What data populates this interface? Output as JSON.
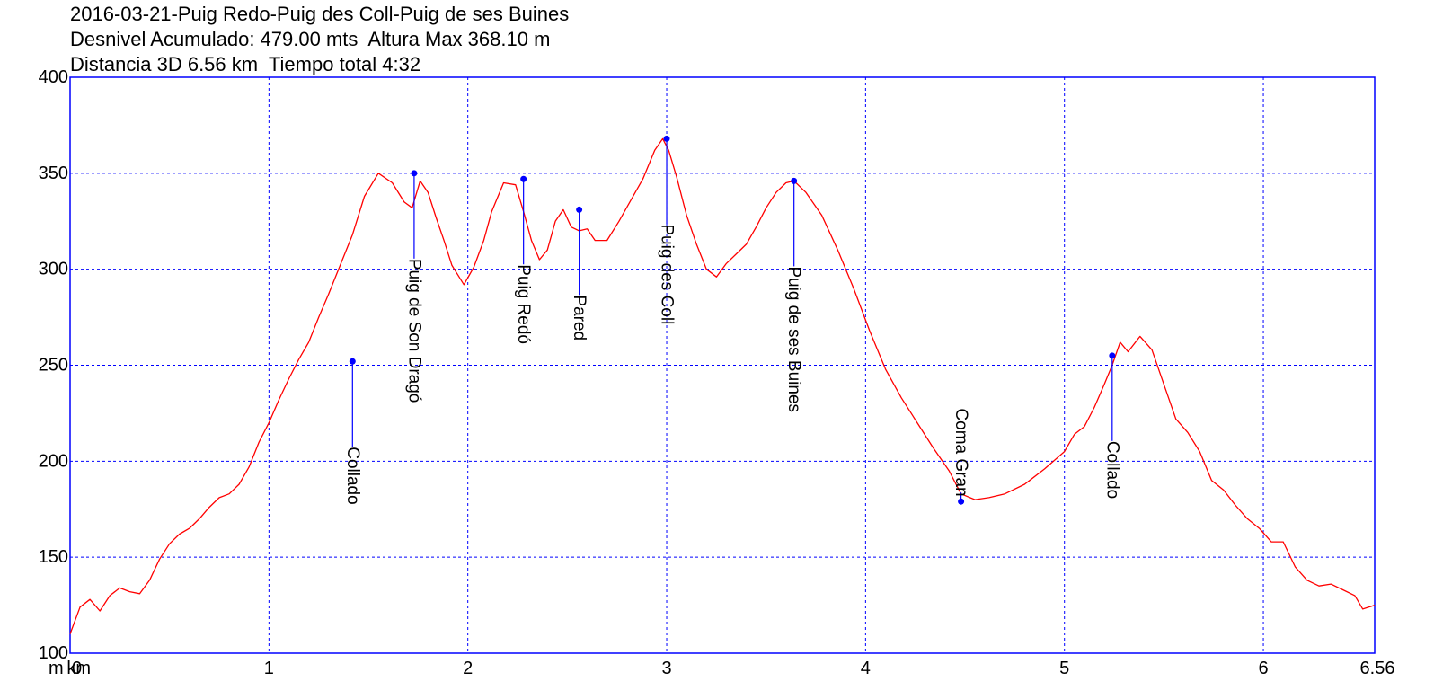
{
  "chart_data": {
    "type": "line",
    "title_lines": [
      "2016-03-21-Puig Redo-Puig des Coll-Puig de ses Buines",
      "Desnivel Acumulado: 479.00 mts  Altura Max 368.10 m",
      "Distancia 3D 6.56 km  Tiempo total 4:32"
    ],
    "xlabel": "km",
    "ylabel": "m",
    "xlim": [
      0,
      6.56
    ],
    "ylim": [
      100,
      400
    ],
    "x_ticks": [
      "0",
      "1",
      "2",
      "3",
      "4",
      "5",
      "6",
      "6.56"
    ],
    "x_tick_values": [
      0,
      1,
      2,
      3,
      4,
      5,
      6,
      6.56
    ],
    "y_ticks": [
      "100",
      "150",
      "200",
      "250",
      "300",
      "350",
      "400"
    ],
    "y_tick_values": [
      100,
      150,
      200,
      250,
      300,
      350,
      400
    ],
    "grid": true,
    "colors": {
      "profile": "#ff0000",
      "grid": "#0000ff",
      "frame": "#0000ff",
      "waypoint": "#0000ff"
    },
    "series": [
      {
        "x": [
          0,
          0.05,
          0.1,
          0.15,
          0.2,
          0.25,
          0.3,
          0.35,
          0.4,
          0.45,
          0.5,
          0.55,
          0.6,
          0.65,
          0.7,
          0.75,
          0.8,
          0.85,
          0.9,
          0.95,
          1.0,
          1.05,
          1.1,
          1.15,
          1.2,
          1.25,
          1.3,
          1.35,
          1.42,
          1.48,
          1.55,
          1.62,
          1.68,
          1.72,
          1.76,
          1.8,
          1.84,
          1.88,
          1.92,
          1.98,
          2.03,
          2.08,
          2.12,
          2.18,
          2.24,
          2.28,
          2.32,
          2.36,
          2.4,
          2.44,
          2.48,
          2.52,
          2.56,
          2.6,
          2.64,
          2.7,
          2.76,
          2.82,
          2.88,
          2.94,
          2.98,
          3.01,
          3.05,
          3.1,
          3.15,
          3.2,
          3.25,
          3.3,
          3.35,
          3.4,
          3.45,
          3.5,
          3.55,
          3.6,
          3.64,
          3.7,
          3.78,
          3.86,
          3.94,
          4.02,
          4.1,
          4.18,
          4.26,
          4.34,
          4.42,
          4.48,
          4.55,
          4.62,
          4.7,
          4.8,
          4.9,
          5.0,
          5.05,
          5.1,
          5.15,
          5.2,
          5.24,
          5.28,
          5.32,
          5.38,
          5.44,
          5.5,
          5.56,
          5.62,
          5.68,
          5.74,
          5.8,
          5.86,
          5.92,
          5.98,
          6.04,
          6.1,
          6.16,
          6.22,
          6.28,
          6.34,
          6.4,
          6.46,
          6.5,
          6.56
        ],
        "y": [
          110,
          124,
          128,
          122,
          130,
          134,
          132,
          131,
          138,
          149,
          157,
          162,
          165,
          170,
          176,
          181,
          183,
          188,
          197,
          210,
          220,
          232,
          243,
          253,
          262,
          275,
          287,
          300,
          318,
          338,
          350,
          345,
          335,
          332,
          346,
          340,
          327,
          315,
          302,
          292,
          301,
          315,
          330,
          345,
          344,
          330,
          315,
          305,
          310,
          325,
          331,
          322,
          320,
          321,
          315,
          315,
          325,
          336,
          347,
          362,
          368,
          362,
          348,
          328,
          313,
          300,
          296,
          303,
          308,
          313,
          322,
          332,
          340,
          345,
          346,
          340,
          328,
          310,
          290,
          268,
          248,
          233,
          220,
          207,
          195,
          183,
          180,
          181,
          183,
          188,
          196,
          205,
          214,
          218,
          228,
          240,
          250,
          262,
          257,
          265,
          258,
          240,
          222,
          215,
          205,
          190,
          185,
          177,
          170,
          165,
          158,
          158,
          145,
          138,
          135,
          136,
          133,
          130,
          123,
          125
        ]
      }
    ],
    "waypoints": [
      {
        "label": "Collado",
        "x": 1.42,
        "y": 252
      },
      {
        "label": "Puig de Son Dragó",
        "x": 1.73,
        "y": 350
      },
      {
        "label": "Puig Redó",
        "x": 2.28,
        "y": 347
      },
      {
        "label": "Pared",
        "x": 2.56,
        "y": 331
      },
      {
        "label": "Puig des Coll",
        "x": 3.0,
        "y": 368
      },
      {
        "label": "Puig  de ses Buines",
        "x": 3.64,
        "y": 346
      },
      {
        "label": "Coma Gran",
        "x": 4.48,
        "y": 179
      },
      {
        "label": "Collado",
        "x": 5.24,
        "y": 255
      }
    ]
  }
}
